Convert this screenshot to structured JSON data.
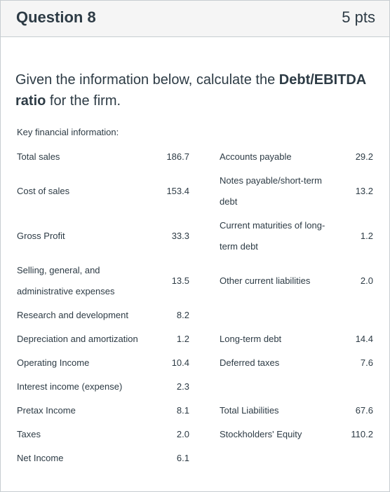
{
  "question": {
    "title": "Question 8",
    "points": "5 pts",
    "text_before": "Given the information below, calculate the ",
    "text_bold": "Debt/EBITDA ratio",
    "text_after": " for the firm."
  },
  "key_label": "Key financial information:",
  "left_rows": [
    {
      "label_line1": "Total sales",
      "label_line2": "",
      "value": "186.7"
    },
    {
      "label_line1": "Cost of sales",
      "label_line2": "",
      "value": "153.4"
    },
    {
      "label_line1": "Gross Profit",
      "label_line2": "",
      "value": "33.3"
    },
    {
      "label_line1": "Selling, general, and",
      "label_line2": "administrative expenses",
      "value": "13.5"
    },
    {
      "label_line1": "Research and development",
      "label_line2": "",
      "value": "8.2"
    },
    {
      "label_line1": "Depreciation and amortization",
      "label_line2": "",
      "value": "1.2"
    },
    {
      "label_line1": "Operating Income",
      "label_line2": "",
      "value": "10.4"
    },
    {
      "label_line1": "Interest income (expense)",
      "label_line2": "",
      "value": "2.3"
    },
    {
      "label_line1": "Pretax Income",
      "label_line2": "",
      "value": "8.1"
    },
    {
      "label_line1": "Taxes",
      "label_line2": "",
      "value": "2.0"
    },
    {
      "label_line1": "Net Income",
      "label_line2": "",
      "value": "6.1"
    }
  ],
  "right_rows": [
    {
      "label_line1": "Accounts payable",
      "label_line2": "",
      "value": "29.2"
    },
    {
      "label_line1": "Notes payable/short-term",
      "label_line2": "debt",
      "value": "13.2"
    },
    {
      "label_line1": "Current maturities of long-",
      "label_line2": "term debt",
      "value": "1.2"
    },
    {
      "label_line1": "Other current liabilities",
      "label_line2": "",
      "value": "2.0"
    },
    {
      "label_line1": "Long-term debt",
      "label_line2": "",
      "value": "14.4"
    },
    {
      "label_line1": "Deferred taxes",
      "label_line2": "",
      "value": "7.6"
    },
    {
      "label_line1": "Total Liabilities",
      "label_line2": "",
      "value": "67.6"
    },
    {
      "label_line1": "Stockholders' Equity",
      "label_line2": "",
      "value": "110.2"
    }
  ]
}
